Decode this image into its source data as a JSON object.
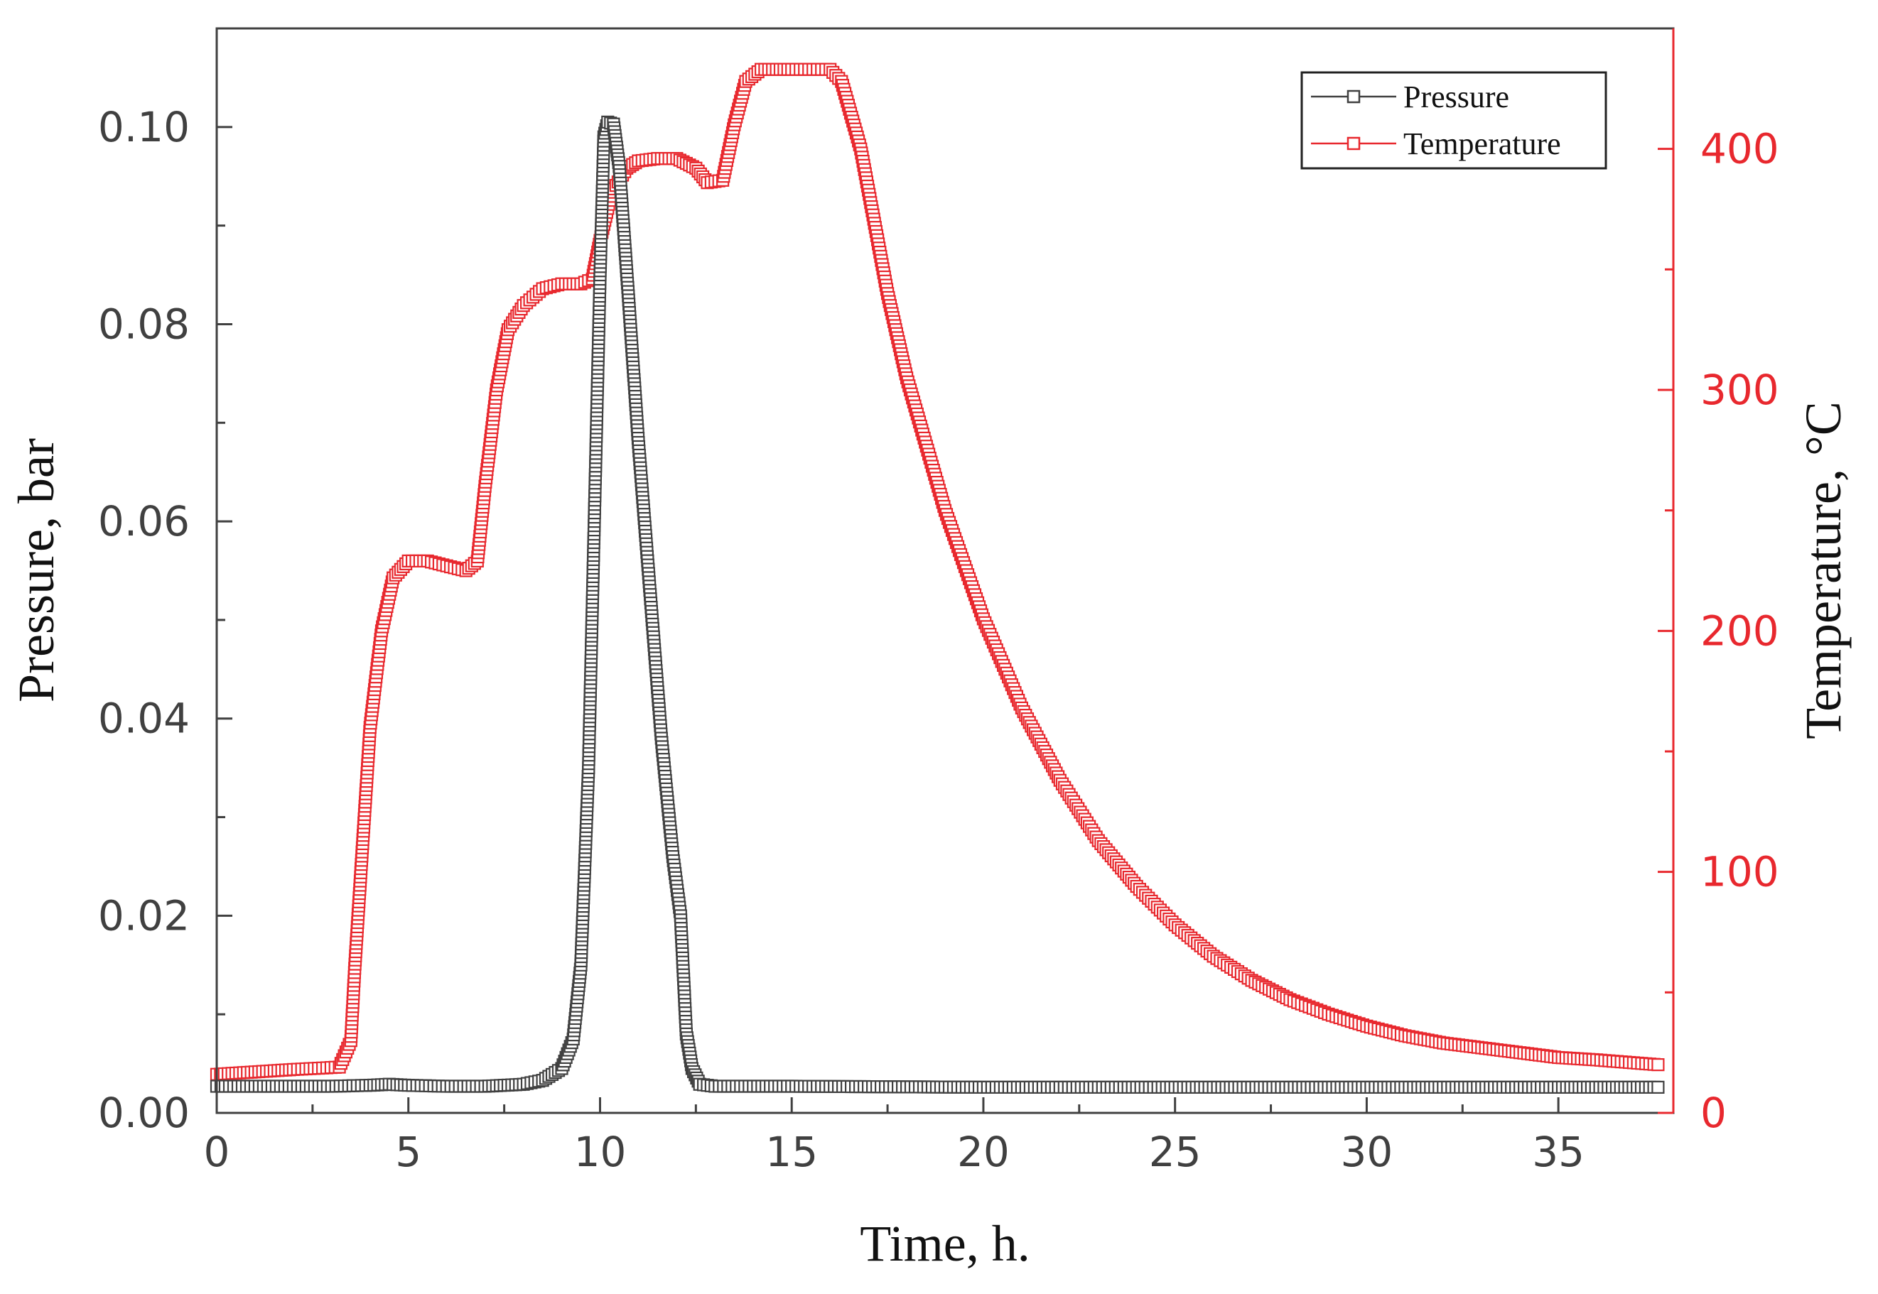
{
  "chart_data": {
    "type": "scatter",
    "title": "",
    "xlabel": "Time, h.",
    "ylabel": "Pressure, bar",
    "y2label": "Temperature, °C",
    "xlim": [
      0,
      38
    ],
    "ylim": [
      0,
      0.11
    ],
    "y2lim": [
      0,
      450
    ],
    "x_ticks": [
      0,
      5,
      10,
      15,
      20,
      25,
      30,
      35
    ],
    "x_tick_labels": [
      "0",
      "5",
      "10",
      "15",
      "20",
      "25",
      "30",
      "35"
    ],
    "y_ticks": [
      0.0,
      0.02,
      0.04,
      0.06,
      0.08,
      0.1
    ],
    "y_tick_labels": [
      "0.00",
      "0.02",
      "0.04",
      "0.06",
      "0.08",
      "0.10"
    ],
    "y2_ticks": [
      0,
      100,
      200,
      300,
      400
    ],
    "y2_tick_labels": [
      "0",
      "100",
      "200",
      "300",
      "400"
    ],
    "grid": false,
    "legend_position": "top-right",
    "marker": "open-square",
    "series": [
      {
        "name": "Pressure",
        "axis": "left",
        "color": "#404040",
        "points": [
          [
            0,
            0.0027
          ],
          [
            1,
            0.0027
          ],
          [
            2,
            0.0027
          ],
          [
            3,
            0.0027
          ],
          [
            4,
            0.0028
          ],
          [
            4.5,
            0.0029
          ],
          [
            5,
            0.0028
          ],
          [
            6,
            0.0027
          ],
          [
            7,
            0.0027
          ],
          [
            8,
            0.0029
          ],
          [
            8.5,
            0.0033
          ],
          [
            9,
            0.0045
          ],
          [
            9.3,
            0.0075
          ],
          [
            9.5,
            0.015
          ],
          [
            9.7,
            0.035
          ],
          [
            9.85,
            0.06
          ],
          [
            10.0,
            0.085
          ],
          [
            10.1,
            0.099
          ],
          [
            10.2,
            0.1005
          ],
          [
            10.35,
            0.1003
          ],
          [
            10.5,
            0.096
          ],
          [
            10.7,
            0.085
          ],
          [
            11.0,
            0.068
          ],
          [
            11.3,
            0.053
          ],
          [
            11.6,
            0.038
          ],
          [
            11.9,
            0.026
          ],
          [
            12.1,
            0.02
          ],
          [
            12.25,
            0.008
          ],
          [
            12.4,
            0.0045
          ],
          [
            12.6,
            0.0029
          ],
          [
            13,
            0.0027
          ],
          [
            15,
            0.0027
          ],
          [
            20,
            0.0026
          ],
          [
            25,
            0.0026
          ],
          [
            30,
            0.0026
          ],
          [
            35,
            0.0026
          ],
          [
            37.6,
            0.0026
          ]
        ]
      },
      {
        "name": "Temperature",
        "axis": "right",
        "color": "#e8282e",
        "points": [
          [
            0,
            16
          ],
          [
            1,
            17
          ],
          [
            2,
            18
          ],
          [
            3.2,
            19
          ],
          [
            3.5,
            30
          ],
          [
            3.6,
            60
          ],
          [
            3.8,
            110
          ],
          [
            4.0,
            160
          ],
          [
            4.3,
            200
          ],
          [
            4.6,
            222
          ],
          [
            5.0,
            229
          ],
          [
            5.5,
            229
          ],
          [
            6.0,
            227
          ],
          [
            6.5,
            225
          ],
          [
            6.8,
            229
          ],
          [
            7.0,
            260
          ],
          [
            7.3,
            300
          ],
          [
            7.6,
            325
          ],
          [
            8.0,
            335
          ],
          [
            8.5,
            342
          ],
          [
            9.0,
            344
          ],
          [
            9.5,
            344
          ],
          [
            9.8,
            346
          ],
          [
            10.0,
            362
          ],
          [
            10.3,
            382
          ],
          [
            10.7,
            392
          ],
          [
            11.0,
            395
          ],
          [
            11.5,
            396
          ],
          [
            12.0,
            396
          ],
          [
            12.5,
            392
          ],
          [
            12.8,
            386
          ],
          [
            13.2,
            387
          ],
          [
            13.5,
            410
          ],
          [
            13.8,
            428
          ],
          [
            14.2,
            433
          ],
          [
            15.0,
            433
          ],
          [
            16.0,
            433
          ],
          [
            16.3,
            428
          ],
          [
            16.8,
            400
          ],
          [
            17.5,
            340
          ],
          [
            18.0,
            305
          ],
          [
            19.0,
            250
          ],
          [
            20.0,
            205
          ],
          [
            21.0,
            168
          ],
          [
            22.0,
            138
          ],
          [
            23.0,
            113
          ],
          [
            24.0,
            94
          ],
          [
            25.0,
            78
          ],
          [
            26.0,
            65
          ],
          [
            27.0,
            55
          ],
          [
            28.0,
            47
          ],
          [
            29.0,
            41
          ],
          [
            30.0,
            36
          ],
          [
            31.0,
            32
          ],
          [
            32.0,
            29
          ],
          [
            33.0,
            27
          ],
          [
            34.0,
            25
          ],
          [
            35.0,
            23
          ],
          [
            36.0,
            22
          ],
          [
            37.6,
            20
          ]
        ]
      }
    ]
  }
}
